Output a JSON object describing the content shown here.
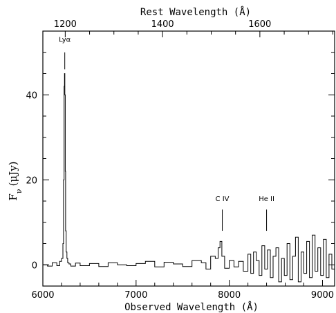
{
  "chart_data": {
    "type": "line",
    "top_axis_label": "Rest Wavelength (Å)",
    "xlabel": "Observed Wavelength (Å)",
    "ylabel_main": "F",
    "ylabel_sub": "ν",
    "ylabel_unit": "(μJy)",
    "xlim": [
      6000,
      9130
    ],
    "ylim": [
      -5,
      55
    ],
    "x_ticks": [
      6000,
      7000,
      8000,
      9000
    ],
    "x_tick_labels": [
      "6000",
      "7000",
      "8000",
      "9000"
    ],
    "y_ticks": [
      0,
      20,
      40
    ],
    "y_tick_labels": [
      "0",
      "20",
      "40"
    ],
    "top_ticks": [
      1200,
      1400,
      1600
    ],
    "top_tick_labels": [
      "1200",
      "1400",
      "1600"
    ],
    "top_tick_positions_observed": [
      6240,
      7284,
      8327
    ],
    "annotations": [
      {
        "text": "Lyα",
        "x": 6235,
        "line_y": [
          46,
          50
        ],
        "label_y": 52.5
      },
      {
        "text": "C IV",
        "x": 7925,
        "line_y": [
          8,
          13
        ],
        "label_y": 15
      },
      {
        "text": "He II",
        "x": 8400,
        "line_y": [
          8,
          13
        ],
        "label_y": 15
      }
    ],
    "series": [
      {
        "style": "histogram",
        "x": [
          6000,
          6050,
          6100,
          6150,
          6180,
          6200,
          6215,
          6222,
          6228,
          6232,
          6236,
          6240,
          6244,
          6250,
          6258,
          6266,
          6280,
          6300,
          6350,
          6400,
          6500,
          6600,
          6700,
          6800,
          6900,
          7000,
          7100,
          7200,
          7300,
          7400,
          7500,
          7600,
          7700,
          7750,
          7800,
          7850,
          7880,
          7900,
          7920,
          7950,
          8000,
          8050,
          8100,
          8150,
          8200,
          8230,
          8260,
          8290,
          8320,
          8350,
          8380,
          8410,
          8440,
          8470,
          8500,
          8530,
          8560,
          8590,
          8620,
          8650,
          8680,
          8710,
          8740,
          8770,
          8800,
          8830,
          8860,
          8890,
          8920,
          8950,
          8980,
          9010,
          9040,
          9070,
          9100,
          9130
        ],
        "y": [
          0.0,
          -0.3,
          0.5,
          -0.2,
          0.8,
          1.5,
          5.0,
          20.0,
          42.0,
          45.0,
          40.0,
          22.0,
          8.0,
          3.0,
          1.5,
          0.5,
          0.2,
          -0.3,
          0.4,
          -0.2,
          0.3,
          -0.4,
          0.5,
          0.0,
          -0.2,
          0.3,
          0.8,
          -0.5,
          0.6,
          0.2,
          -0.4,
          1.0,
          0.5,
          -1.0,
          2.0,
          1.5,
          4.0,
          5.5,
          2.0,
          -0.8,
          1.0,
          -0.5,
          0.8,
          -1.5,
          2.5,
          -2.0,
          3.0,
          1.0,
          -2.5,
          4.5,
          -1.0,
          3.5,
          -3.0,
          2.0,
          4.0,
          -4.0,
          1.5,
          -2.5,
          5.0,
          -3.5,
          2.0,
          6.5,
          -4.0,
          3.0,
          -2.0,
          5.5,
          -3.0,
          7.0,
          -1.5,
          4.0,
          -2.5,
          6.0,
          -3.0,
          2.5,
          -1.0,
          1.0
        ]
      }
    ],
    "grid": false
  }
}
